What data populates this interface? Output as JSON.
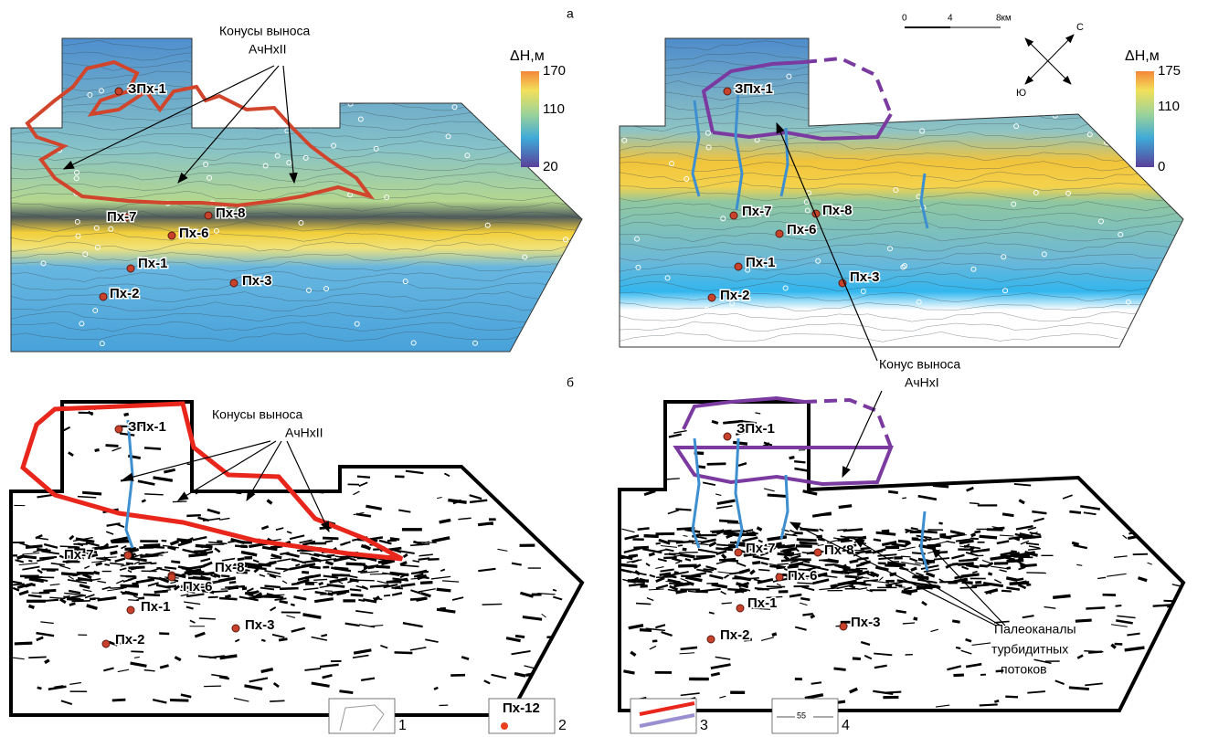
{
  "panel_labels": [
    "а",
    "б"
  ],
  "scale_bar": {
    "labels": [
      "0",
      "4",
      "8км"
    ]
  },
  "compass": {
    "north": "С",
    "south": "Ю"
  },
  "maps": [
    {
      "colorbar": {
        "title": "ΔH,м",
        "ticks": [
          170,
          110,
          20
        ]
      },
      "annotation": [
        "Конусы выноса",
        "АчНхII"
      ],
      "wells": [
        "ЗПх-1",
        "Пх-7",
        "Пх-8",
        "Пх-6",
        "Пх-1",
        "Пх-3",
        "Пх-2"
      ]
    },
    {
      "colorbar": {
        "title": "ΔH,м",
        "ticks": [
          175,
          110,
          0
        ]
      },
      "wells": [
        "ЗПх-1",
        "Пх-7",
        "Пх-8",
        "Пх-6",
        "Пх-1",
        "Пх-3",
        "Пх-2"
      ]
    },
    {
      "annotation": [
        "Конусы выноса",
        "АчНхII"
      ],
      "wells": [
        "ЗПх-1",
        "Пх-7",
        "Пх-8",
        "Пх-6",
        "Пх-1",
        "Пх-3",
        "Пх-2"
      ]
    },
    {
      "annotation": [
        "Палеоканалы",
        "турбидитных",
        "потоков"
      ],
      "wells": [
        "ЗПх-1",
        "Пх-7",
        "Пх-8",
        "Пх-6",
        "Пх-1",
        "Пх-3",
        "Пх-2"
      ]
    }
  ],
  "shared_annotation": [
    "Конус выноса",
    "АчНхI"
  ],
  "legend": [
    {
      "number": "1"
    },
    {
      "number": "2",
      "sample": "Пх-12"
    },
    {
      "number": "3"
    },
    {
      "number": "4",
      "sample": "55"
    }
  ]
}
